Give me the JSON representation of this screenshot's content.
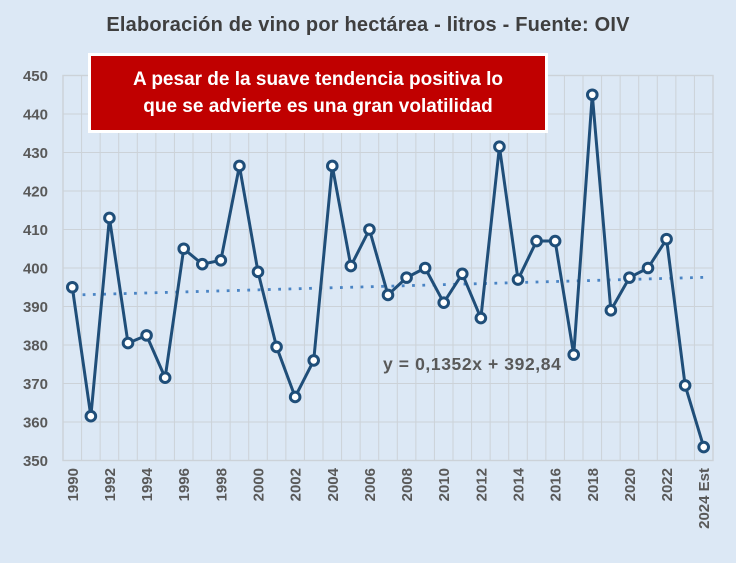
{
  "chart_data": {
    "type": "line",
    "title": "Elaboración de vino por hectárea - litros - Fuente: OIV",
    "x": [
      "1990",
      "1991",
      "1992",
      "1993",
      "1994",
      "1995",
      "1996",
      "1997",
      "1998",
      "1999",
      "2000",
      "2001",
      "2002",
      "2003",
      "2004",
      "2005",
      "2006",
      "2007",
      "2008",
      "2009",
      "2010",
      "2011",
      "2012",
      "2013",
      "2014",
      "2015",
      "2016",
      "2017",
      "2018",
      "2019",
      "2020",
      "2021",
      "2022",
      "2023",
      "2024 Est"
    ],
    "series": [
      {
        "name": "Litros por hectárea",
        "values": [
          395,
          361.5,
          413,
          380.5,
          382.5,
          371.5,
          405,
          401,
          402,
          426.5,
          399,
          379.5,
          366.5,
          376,
          426.5,
          400.5,
          410,
          393,
          397.5,
          400,
          391,
          398.5,
          387,
          431.5,
          397,
          407,
          407,
          377.5,
          445,
          389,
          397.5,
          400,
          407.5,
          369.5,
          353.5
        ]
      }
    ],
    "trendline": {
      "label": "y = 0,1352x + 392,84",
      "slope": 0.1352,
      "intercept": 392.84,
      "style": "dotted"
    },
    "ylim": [
      350,
      450
    ],
    "ytick_step": 10,
    "xtick_every": 2,
    "grid": true,
    "legend": false
  },
  "annotation": {
    "line1": "A pesar de la suave tendencia positiva lo",
    "line2": "que se advierte es una gran volatilidad"
  },
  "colors": {
    "background": "#dce8f5",
    "grid": "#ccd2d8",
    "line": "#1f4e79",
    "marker_fill": "#ffffff",
    "trend": "#4a84c4",
    "title_text": "#3f3f3f",
    "axis_text": "#595959",
    "equation_text": "#595959",
    "callout_bg": "#c00000",
    "callout_border": "#ffffff",
    "callout_text": "#ffffff"
  }
}
